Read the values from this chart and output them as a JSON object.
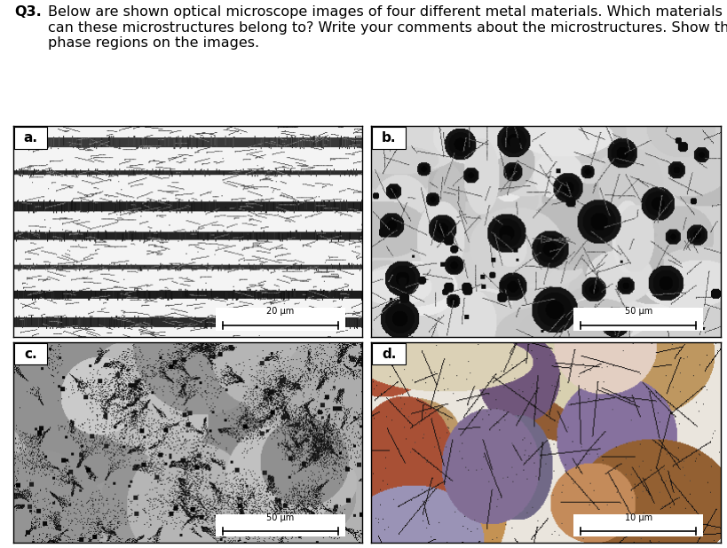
{
  "title_bold": "Q3.",
  "title_text": "Below are shown optical microscope images of four different metal materials. Which materials\ncan these microstructures belong to? Write your comments about the microstructures. Show the\nphase regions on the images.",
  "panel_labels": [
    "a.",
    "b.",
    "c.",
    "d."
  ],
  "scale_bar_labels": [
    "20 μm",
    "50 μm",
    "50 μm",
    "10 μm"
  ],
  "background_color": "#ffffff",
  "fig_width": 8.2,
  "fig_height": 6.18,
  "title_fontsize": 11.5,
  "label_fontsize": 11,
  "scalebar_fontsize": 7
}
